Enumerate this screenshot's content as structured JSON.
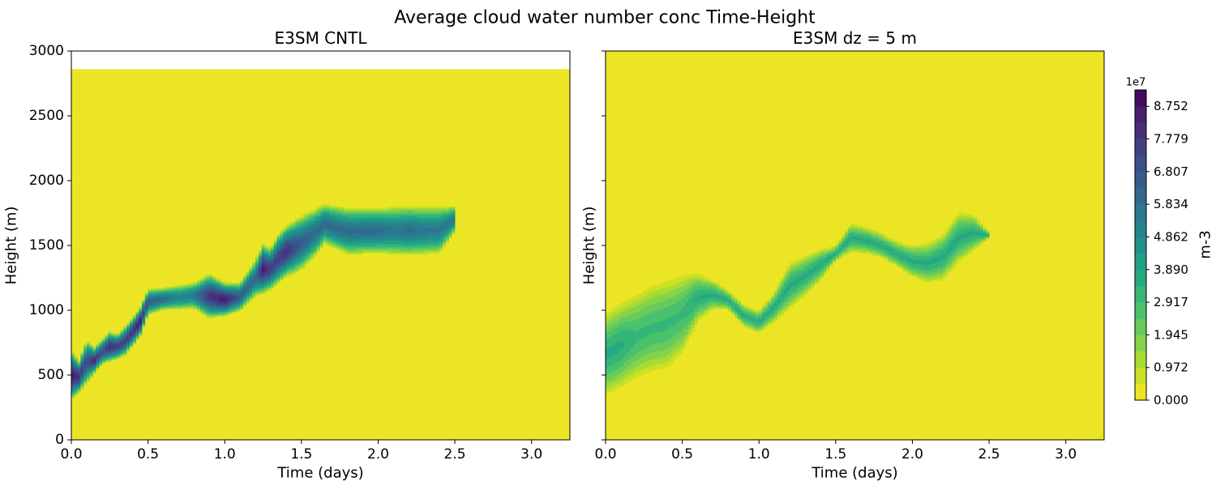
{
  "figure": {
    "title": "Average cloud water number conc Time-Height"
  },
  "chart_data": [
    {
      "type": "heatmap",
      "title": "E3SM CNTL",
      "xlabel": "Time (days)",
      "ylabel": "Height (m)",
      "xlim": [
        0,
        3.25
      ],
      "ylim": [
        0,
        3000
      ],
      "xticks": [
        "0.0",
        "0.5",
        "1.0",
        "1.5",
        "2.0",
        "2.5",
        "3.0"
      ],
      "yticks": [
        "0",
        "500",
        "1000",
        "1500",
        "2000",
        "2500",
        "3000"
      ],
      "data_top_height": 2860,
      "background_value": 0.0,
      "cloud_layer": {
        "time": [
          0.0,
          0.05,
          0.1,
          0.15,
          0.2,
          0.25,
          0.3,
          0.35,
          0.4,
          0.45,
          0.5,
          0.6,
          0.7,
          0.8,
          0.9,
          1.0,
          1.1,
          1.2,
          1.25,
          1.3,
          1.35,
          1.4,
          1.5,
          1.6,
          1.65,
          1.8,
          2.0,
          2.1,
          2.2,
          2.3,
          2.4,
          2.5
        ],
        "top": [
          700,
          620,
          780,
          720,
          780,
          840,
          820,
          880,
          950,
          1030,
          1170,
          1180,
          1200,
          1220,
          1290,
          1220,
          1220,
          1400,
          1520,
          1490,
          1600,
          1660,
          1740,
          1800,
          1830,
          1800,
          1800,
          1810,
          1810,
          1810,
          1810,
          1810
        ],
        "base": [
          300,
          360,
          430,
          510,
          580,
          600,
          620,
          650,
          720,
          800,
          960,
          1000,
          1000,
          1010,
          930,
          950,
          990,
          1100,
          1120,
          1150,
          1200,
          1250,
          1300,
          1420,
          1500,
          1420,
          1430,
          1420,
          1420,
          1420,
          1430,
          1600
        ],
        "peak": [
          8.5,
          8.0,
          7.0,
          8.0,
          7.0,
          8.0,
          7.5,
          7.5,
          8.0,
          8.5,
          6.5,
          6.0,
          5.0,
          5.5,
          8.0,
          8.5,
          6.5,
          6.0,
          8.5,
          7.5,
          7.5,
          8.0,
          6.5,
          6.0,
          6.0,
          6.0,
          6.0,
          5.5,
          6.0,
          5.5,
          5.5,
          5.5
        ]
      }
    },
    {
      "type": "heatmap",
      "title": "E3SM dz = 5 m",
      "xlabel": "Time (days)",
      "ylabel": "Height (m)",
      "xlim": [
        0,
        3.25
      ],
      "ylim": [
        0,
        3000
      ],
      "xticks": [
        "0.0",
        "0.5",
        "1.0",
        "1.5",
        "2.0",
        "2.5",
        "3.0"
      ],
      "yticks": [
        "",
        "",
        "",
        "",
        "",
        "",
        ""
      ],
      "data_top_height": 3000,
      "background_value": 0.0,
      "cloud_layer": {
        "time": [
          0.0,
          0.1,
          0.2,
          0.3,
          0.4,
          0.5,
          0.6,
          0.7,
          0.8,
          0.9,
          1.0,
          1.1,
          1.2,
          1.3,
          1.4,
          1.5,
          1.6,
          1.7,
          1.8,
          1.9,
          2.0,
          2.1,
          2.2,
          2.3,
          2.4,
          2.5
        ],
        "top": [
          1000,
          1080,
          1150,
          1220,
          1260,
          1300,
          1300,
          1240,
          1160,
          1050,
          1000,
          1150,
          1380,
          1430,
          1480,
          1500,
          1680,
          1650,
          1600,
          1540,
          1510,
          1530,
          1600,
          1770,
          1750,
          1600
        ],
        "base": [
          320,
          380,
          450,
          500,
          520,
          640,
          900,
          1000,
          1000,
          870,
          820,
          900,
          1000,
          1100,
          1220,
          1380,
          1440,
          1430,
          1400,
          1330,
          1250,
          1200,
          1220,
          1350,
          1450,
          1560
        ],
        "peak": [
          3.5,
          3.5,
          3.0,
          3.0,
          3.0,
          3.0,
          3.5,
          3.5,
          3.5,
          3.5,
          3.5,
          3.5,
          3.5,
          3.5,
          3.5,
          3.5,
          3.5,
          3.5,
          3.5,
          3.5,
          3.5,
          3.5,
          3.5,
          3.5,
          3.5,
          3.5
        ]
      }
    }
  ],
  "colorbar": {
    "label": "m-3",
    "exponent": "1e7",
    "ticks": [
      "0.000",
      "0.972",
      "1.945",
      "2.917",
      "3.890",
      "4.862",
      "5.834",
      "6.807",
      "7.779",
      "8.752"
    ],
    "vmin": 0.0,
    "vmax": 9.24,
    "levels": 19,
    "colormap": "viridis_r"
  },
  "colors": {
    "viridis": [
      "#440154",
      "#482475",
      "#414487",
      "#355f8d",
      "#2a788e",
      "#21918c",
      "#22a884",
      "#44bf70",
      "#7ad151",
      "#bddf26",
      "#fde725"
    ],
    "axis": "#000000",
    "panel_background": "#ffffff"
  }
}
